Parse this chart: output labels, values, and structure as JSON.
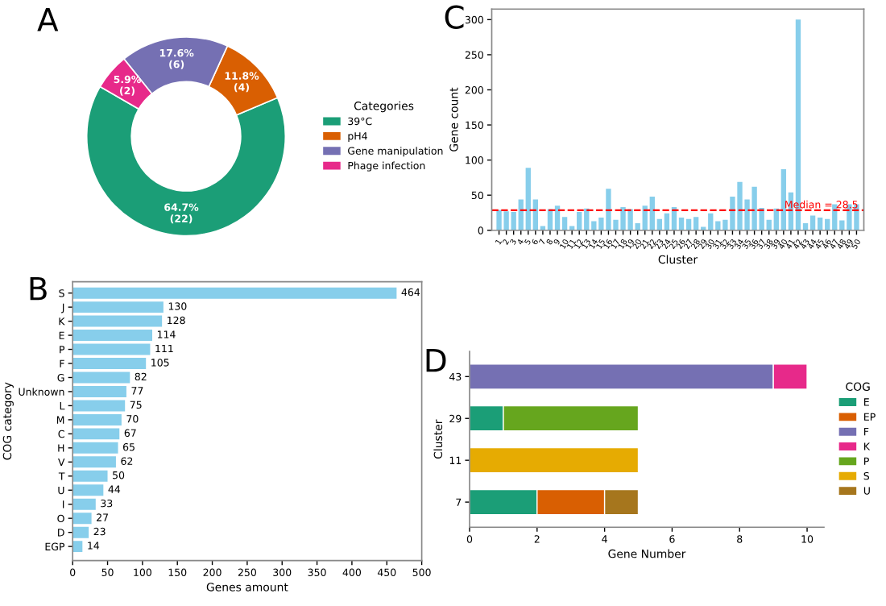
{
  "chart_data": [
    {
      "type": "donut",
      "title": "A",
      "legend_title": "Categories",
      "legend": "right",
      "categories": [
        "39°C",
        "pH4",
        "Gene manipulation",
        "Phage infection"
      ],
      "values": [
        64.7,
        11.8,
        17.6,
        5.9
      ],
      "colors": [
        "#1b9e77",
        "#d95f02",
        "#7570b3",
        "#e7298a"
      ],
      "value_labels": [
        "64.7%\n(22)",
        "11.8%\n(4)",
        "17.6%\n(6)",
        "5.9%\n(2)"
      ]
    },
    {
      "type": "bar",
      "title": "C",
      "xlabel": "Cluster",
      "ylabel": "Gene count",
      "categories": [
        "1",
        "2",
        "3",
        "4",
        "5",
        "6",
        "7",
        "8",
        "9",
        "10",
        "11",
        "12",
        "13",
        "14",
        "15",
        "16",
        "17",
        "18",
        "19",
        "20",
        "21",
        "22",
        "23",
        "24",
        "25",
        "26",
        "27",
        "28",
        "29",
        "30",
        "31",
        "32",
        "33",
        "34",
        "35",
        "36",
        "37",
        "38",
        "39",
        "40",
        "41",
        "42",
        "43",
        "44",
        "45",
        "46",
        "47",
        "48",
        "49",
        "50"
      ],
      "values": [
        29,
        27,
        26,
        44,
        89,
        44,
        6,
        30,
        35,
        19,
        6,
        26,
        31,
        13,
        18,
        59,
        15,
        33,
        30,
        10,
        35,
        48,
        16,
        24,
        33,
        18,
        16,
        19,
        5,
        24,
        13,
        15,
        48,
        69,
        44,
        62,
        32,
        15,
        31,
        87,
        54,
        300,
        10,
        21,
        18,
        16,
        37,
        14,
        37,
        37
      ],
      "color": "#87ceeb",
      "ylim": [
        0,
        315
      ],
      "yticks": [
        0,
        50,
        100,
        150,
        200,
        250,
        300
      ],
      "ref_lines": [
        {
          "axis": "y",
          "value": 28.5,
          "label": "Median = 28.5",
          "color": "#ff0000",
          "line_style": "dashed"
        }
      ]
    },
    {
      "type": "bar",
      "title": "B",
      "orientation": "horizontal",
      "xlabel": "Genes amount",
      "ylabel": "COG category",
      "categories": [
        "S",
        "J",
        "K",
        "E",
        "P",
        "F",
        "G",
        "Unknown",
        "L",
        "M",
        "C",
        "H",
        "V",
        "T",
        "U",
        "I",
        "O",
        "D",
        "EGP"
      ],
      "values": [
        464,
        130,
        128,
        114,
        111,
        105,
        82,
        77,
        75,
        70,
        67,
        65,
        62,
        50,
        44,
        33,
        27,
        23,
        14
      ],
      "color": "#87ceeb",
      "data_labels": true,
      "xlim": [
        0,
        500
      ],
      "xticks": [
        0,
        50,
        100,
        150,
        200,
        250,
        300,
        350,
        400,
        450,
        500
      ]
    },
    {
      "type": "bar",
      "title": "D",
      "orientation": "horizontal",
      "stacked": true,
      "xlabel": "Gene Number",
      "ylabel": "Cluster",
      "legend_title": "COG",
      "legend": "right",
      "categories": [
        "43",
        "29",
        "11",
        "7"
      ],
      "series": [
        {
          "name": "E",
          "color": "#1b9e77",
          "values": [
            null,
            1,
            null,
            2
          ]
        },
        {
          "name": "EP",
          "color": "#d95f02",
          "values": [
            null,
            null,
            null,
            2
          ]
        },
        {
          "name": "F",
          "color": "#7570b3",
          "values": [
            9,
            null,
            null,
            null
          ]
        },
        {
          "name": "K",
          "color": "#e7298a",
          "values": [
            1,
            null,
            null,
            null
          ]
        },
        {
          "name": "P",
          "color": "#66a61e",
          "values": [
            null,
            4,
            null,
            null
          ]
        },
        {
          "name": "S",
          "color": "#e6ab02",
          "values": [
            null,
            null,
            5,
            null
          ]
        },
        {
          "name": "U",
          "color": "#a6761d",
          "values": [
            null,
            null,
            null,
            1
          ]
        }
      ],
      "xlim": [
        0,
        10.5
      ],
      "xticks": [
        0,
        2,
        4,
        6,
        8,
        10
      ]
    }
  ]
}
